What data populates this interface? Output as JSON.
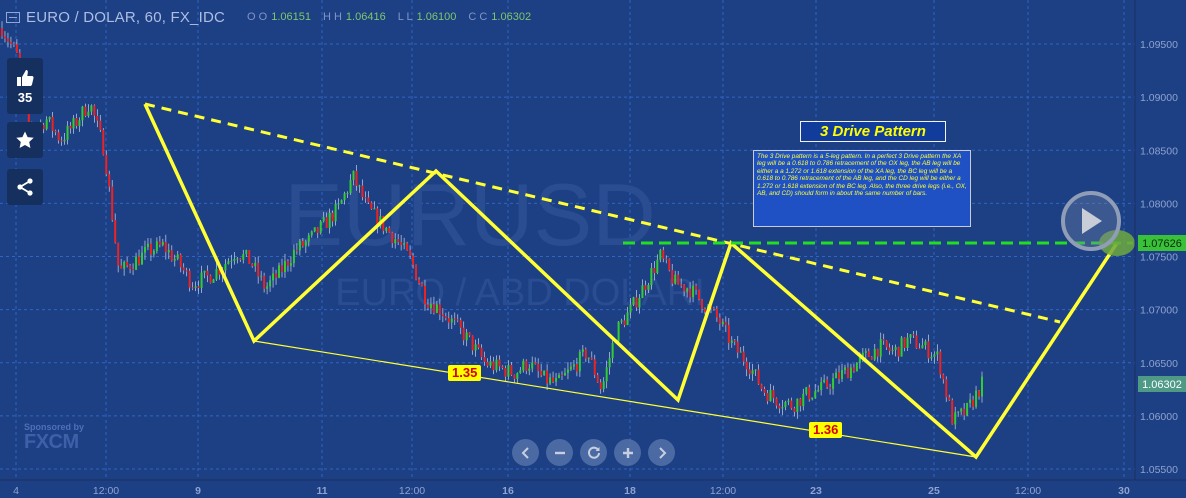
{
  "header": {
    "title": "EURO / DOLAR, 60, FX_IDC",
    "ohlc": [
      {
        "label": "O O",
        "value": "1.06151"
      },
      {
        "label": "H H",
        "value": "1.06416"
      },
      {
        "label": "L L",
        "value": "1.06100"
      },
      {
        "label": "C C",
        "value": "1.06302"
      }
    ]
  },
  "sidebar": {
    "likes": "35"
  },
  "watermark": {
    "symbol": "EURUSD",
    "name": "EURO / ABD DOLARI"
  },
  "pattern": {
    "title": "3 Drive Pattern",
    "description": "The 3 Drive pattern is a 5-leg pattern. In a perfect 3 Drive pattern the XA leg will be a 0.618 to 0.786 retracement of the OX leg, the AB leg will be either a a 1.272 or 1.618 extension of the XA leg, the BC leg will be a 0.618 to 0.786 retracement of the AB leg, and the CD leg will be either a 1.272 or 1.618 extension of the BC leg. Also, the three drive legs (i.e., OX, AB, and CD) should form in about the same number of bars.",
    "ratio_1": "1.35",
    "ratio_2": "1.36"
  },
  "sponsor": {
    "text": "Sponsored by",
    "logo": "FXCM"
  },
  "colors": {
    "background": "#1d3f84",
    "pattern": "#ffff33",
    "level_line": "#22dd22",
    "up_candle": "#33cc33",
    "down_candle": "#ee2222"
  },
  "chart_data": {
    "type": "candlestick",
    "symbol": "EURO / DOLAR",
    "interval": "60",
    "ylim": [
      1.0545,
      1.0995
    ],
    "y_ticks": [
      "1.09500",
      "1.09000",
      "1.08500",
      "1.08000",
      "1.07500",
      "1.07000",
      "1.06500",
      "1.06000",
      "1.05500"
    ],
    "x_ticks": [
      "4",
      "12:00",
      "9",
      "11",
      "12:00",
      "16",
      "18",
      "12:00",
      "23",
      "25",
      "12:00",
      "30"
    ],
    "level": {
      "value": 1.07626,
      "label": "1.07626"
    },
    "last_price": {
      "value": 1.06302,
      "label": "1.06302"
    },
    "price_path": [
      1.0965,
      1.094,
      1.086,
      1.088,
      1.086,
      1.0875,
      1.0895,
      1.085,
      1.0735,
      1.0745,
      1.0755,
      1.076,
      1.0745,
      1.0725,
      1.073,
      1.074,
      1.0755,
      1.0745,
      1.072,
      1.0735,
      1.0755,
      1.0765,
      1.078,
      1.0795,
      1.0825,
      1.0795,
      1.078,
      1.0765,
      1.0745,
      1.071,
      1.07,
      1.0685,
      1.067,
      1.065,
      1.0645,
      1.064,
      1.065,
      1.0635,
      1.063,
      1.0645,
      1.066,
      1.0625,
      1.068,
      1.07,
      1.0725,
      1.075,
      1.0725,
      1.072,
      1.0705,
      1.069,
      1.0665,
      1.065,
      1.0625,
      1.0615,
      1.061,
      1.062,
      1.0625,
      1.0635,
      1.0645,
      1.0655,
      1.0665,
      1.066,
      1.0672,
      1.0665,
      1.0655,
      1.0595,
      1.0605,
      1.063
    ],
    "three_drive": [
      {
        "x": "8 Jun 20:00",
        "y": 1.089
      },
      {
        "x": "10 Jun",
        "y": 1.0673
      },
      {
        "x": "12 Jun 12:00",
        "y": 1.083
      },
      {
        "x": "19 Jun",
        "y": 1.0615
      },
      {
        "x": "20 Jun 12:00",
        "y": 1.0762
      },
      {
        "x": "26 Jun",
        "y": 1.0565
      },
      {
        "x": "29 Jun 12:00",
        "y": 1.0762
      }
    ]
  }
}
